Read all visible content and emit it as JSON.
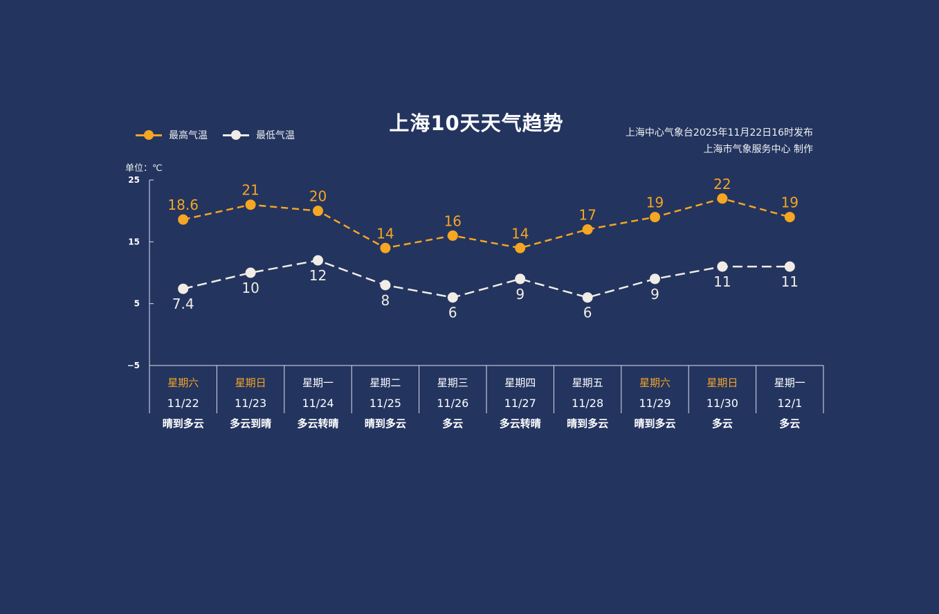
{
  "header": {
    "title": "上海10天天气趋势",
    "publisher_line1": "上海中心气象台2025年11月22日16时发布",
    "publisher_line2": "上海市气象服务中心  制作"
  },
  "colors": {
    "background": "#23345f",
    "high": "#f5a623",
    "low": "#f1ede6",
    "weekend": "#f5a623",
    "text": "#ffffff"
  },
  "chart_data": {
    "type": "line",
    "title": "上海10天天气趋势",
    "unit_label": "单位：℃",
    "ylim": [
      -5,
      25
    ],
    "yticks": [
      25,
      15,
      5,
      -5
    ],
    "grid": false,
    "legend_position": "top-left",
    "categories": [
      "11/22",
      "11/23",
      "11/24",
      "11/25",
      "11/26",
      "11/27",
      "11/28",
      "11/29",
      "11/30",
      "12/1"
    ],
    "weekdays": [
      "星期六",
      "星期日",
      "星期一",
      "星期二",
      "星期三",
      "星期四",
      "星期五",
      "星期六",
      "星期日",
      "星期一"
    ],
    "weekend": [
      true,
      true,
      false,
      false,
      false,
      false,
      false,
      true,
      true,
      false
    ],
    "weather": [
      "晴到多云",
      "多云到晴",
      "多云转晴",
      "晴到多云",
      "多云",
      "多云转晴",
      "晴到多云",
      "晴到多云",
      "多云",
      "多云"
    ],
    "series": [
      {
        "name": "最高气温",
        "values": [
          18.6,
          21,
          20,
          14,
          16,
          14,
          17,
          19,
          22,
          19
        ],
        "labels": [
          "18.6",
          "21",
          "20",
          "14",
          "16",
          "14",
          "17",
          "19",
          "22",
          "19"
        ]
      },
      {
        "name": "最低气温",
        "values": [
          7.4,
          10,
          12,
          8,
          6,
          9,
          6,
          9,
          11,
          11
        ],
        "labels": [
          "7.4",
          "10",
          "12",
          "8",
          "6",
          "9",
          "6",
          "9",
          "11",
          "11"
        ]
      }
    ]
  }
}
